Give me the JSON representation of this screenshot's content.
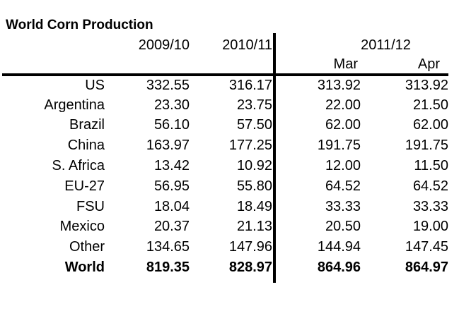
{
  "title": "World Corn Production",
  "colors": {
    "text": "#000000",
    "background": "#ffffff",
    "rule": "#000000"
  },
  "chart_data": {
    "type": "table",
    "title": "World Corn Production",
    "column_group": {
      "label": "2011/12",
      "spans": [
        "Mar",
        "Apr"
      ]
    },
    "columns": [
      "2009/10",
      "2010/11",
      "Mar",
      "Apr"
    ],
    "layout": {
      "header_rule": "thick solid below headers",
      "column_divider": "thick vertical rule after 2010/11 column",
      "alignment": "all values right-aligned"
    },
    "rows": [
      {
        "label": "US",
        "values": [
          "332.55",
          "316.17",
          "313.92",
          "313.92"
        ],
        "bold_mar_apr": false,
        "bold_all": false
      },
      {
        "label": "Argentina",
        "values": [
          "23.30",
          "23.75",
          "22.00",
          "21.50"
        ],
        "bold_mar_apr": true,
        "bold_all": false
      },
      {
        "label": "Brazil",
        "values": [
          "56.10",
          "57.50",
          "62.00",
          "62.00"
        ],
        "bold_mar_apr": false,
        "bold_all": false
      },
      {
        "label": "China",
        "values": [
          "163.97",
          "177.25",
          "191.75",
          "191.75"
        ],
        "bold_mar_apr": false,
        "bold_all": false
      },
      {
        "label": "S. Africa",
        "values": [
          "13.42",
          "10.92",
          "12.00",
          "11.50"
        ],
        "bold_mar_apr": true,
        "bold_all": false
      },
      {
        "label": "EU-27",
        "values": [
          "56.95",
          "55.80",
          "64.52",
          "64.52"
        ],
        "bold_mar_apr": false,
        "bold_all": false
      },
      {
        "label": "FSU",
        "values": [
          "18.04",
          "18.49",
          "33.33",
          "33.33"
        ],
        "bold_mar_apr": false,
        "bold_all": false
      },
      {
        "label": "Mexico",
        "values": [
          "20.37",
          "21.13",
          "20.50",
          "19.00"
        ],
        "bold_mar_apr": true,
        "bold_all": false
      },
      {
        "label": "Other",
        "values": [
          "134.65",
          "147.96",
          "144.94",
          "147.45"
        ],
        "bold_mar_apr": true,
        "bold_all": false
      },
      {
        "label": "World",
        "values": [
          "819.35",
          "828.97",
          "864.96",
          "864.97"
        ],
        "bold_mar_apr": true,
        "bold_all": true
      }
    ]
  }
}
